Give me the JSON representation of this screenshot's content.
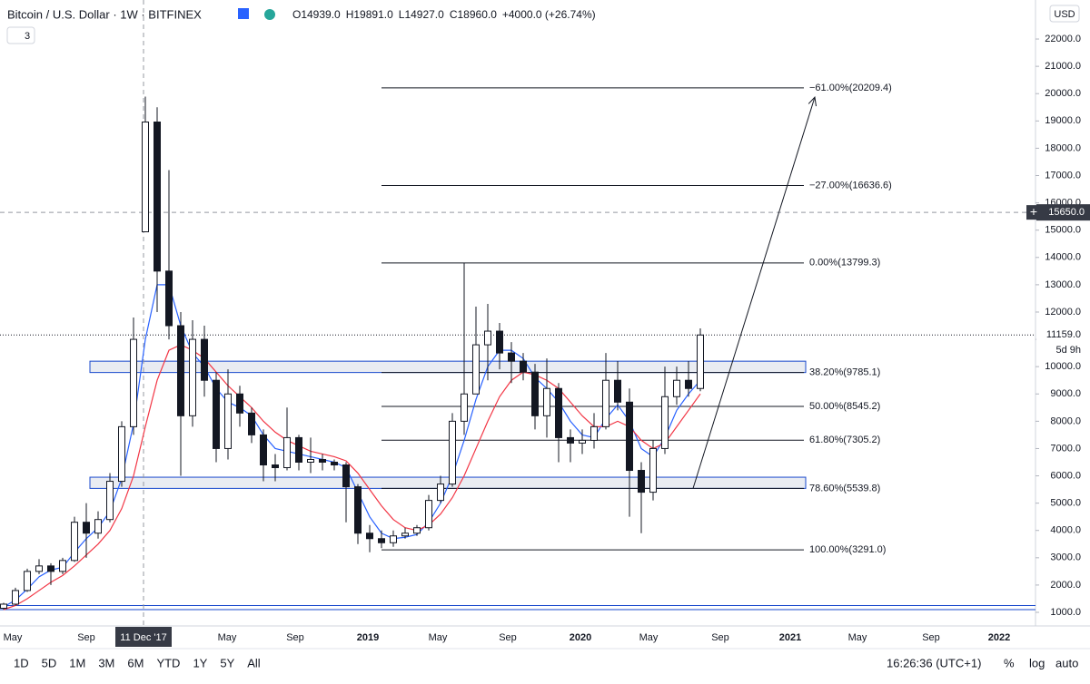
{
  "header": {
    "symbol": "Bitcoin / U.S. Dollar · 1W · BITFINEX",
    "indicators": "3",
    "ohlc": [
      "O14939.0",
      "H19891.0",
      "L14927.0",
      "C18960.0",
      "+4000.0 (+26.74%)"
    ]
  },
  "chart_data": {
    "type": "candlestick",
    "currency": "USD",
    "ylim": [
      502,
      23430
    ],
    "yticks": [
      {
        "value": 1000,
        "label": "1000.0"
      },
      {
        "value": 2000,
        "label": "2000.0"
      },
      {
        "value": 3000,
        "label": "3000.0"
      },
      {
        "value": 4000,
        "label": "4000.0"
      },
      {
        "value": 5000,
        "label": "5000.0"
      },
      {
        "value": 6000,
        "label": "6000.0"
      },
      {
        "value": 7000,
        "label": "7000.0"
      },
      {
        "value": 8000,
        "label": "8000.0"
      },
      {
        "value": 9000,
        "label": "9000.0"
      },
      {
        "value": 10000,
        "label": "10000.0"
      },
      {
        "value": 11000,
        "label": "11000.0"
      },
      {
        "value": 12000,
        "label": "12000.0"
      },
      {
        "value": 13000,
        "label": "13000.0"
      },
      {
        "value": 14000,
        "label": "14000.0"
      },
      {
        "value": 15000,
        "label": "15000.0"
      },
      {
        "value": 16000,
        "label": "16000.0"
      },
      {
        "value": 17000,
        "label": "17000.0"
      },
      {
        "value": 18000,
        "label": "18000.0"
      },
      {
        "value": 19000,
        "label": "19000.0"
      },
      {
        "value": 20000,
        "label": "20000.0"
      },
      {
        "value": 21000,
        "label": "21000.0"
      },
      {
        "value": 22000,
        "label": "22000.0"
      }
    ],
    "xlabels": [
      "May",
      "Sep",
      "May",
      "Sep",
      "2019",
      "May",
      "Sep",
      "2020",
      "May",
      "Sep",
      "2021",
      "May",
      "Sep",
      "2022"
    ],
    "candles": [
      [
        1150,
        1350,
        1100,
        1300
      ],
      [
        1300,
        1900,
        1250,
        1800
      ],
      [
        1800,
        2600,
        1750,
        2500
      ],
      [
        2500,
        2950,
        2400,
        2700
      ],
      [
        2700,
        2800,
        2000,
        2500
      ],
      [
        2500,
        3000,
        2400,
        2900
      ],
      [
        2900,
        4500,
        2850,
        4300
      ],
      [
        4300,
        5000,
        3000,
        3900
      ],
      [
        3900,
        4700,
        3700,
        4400
      ],
      [
        4400,
        6100,
        4300,
        5800
      ],
      [
        5800,
        8000,
        5600,
        7800
      ],
      [
        7800,
        11800,
        7500,
        11000
      ],
      [
        14939,
        19891,
        14927,
        18960
      ],
      [
        18960,
        19500,
        12000,
        13500
      ],
      [
        13500,
        17200,
        11000,
        11500
      ],
      [
        11500,
        12000,
        6000,
        8200
      ],
      [
        8200,
        11700,
        7800,
        11000
      ],
      [
        11000,
        11500,
        8900,
        9500
      ],
      [
        9500,
        9800,
        6500,
        7000
      ],
      [
        7000,
        9900,
        6600,
        9000
      ],
      [
        9000,
        9300,
        7800,
        8300
      ],
      [
        8300,
        8500,
        7200,
        7500
      ],
      [
        7500,
        7700,
        5800,
        6400
      ],
      [
        6400,
        6800,
        5800,
        6300
      ],
      [
        6300,
        8500,
        6200,
        7400
      ],
      [
        7400,
        7500,
        6200,
        6500
      ],
      [
        6500,
        7400,
        6100,
        6600
      ],
      [
        6600,
        6800,
        6200,
        6500
      ],
      [
        6500,
        6600,
        6200,
        6400
      ],
      [
        6400,
        6500,
        4300,
        5600
      ],
      [
        5600,
        5700,
        3500,
        3900
      ],
      [
        3900,
        4200,
        3200,
        3700
      ],
      [
        3700,
        4000,
        3350,
        3550
      ],
      [
        3550,
        4000,
        3400,
        3800
      ],
      [
        3800,
        4100,
        3700,
        3900
      ],
      [
        3900,
        4200,
        3800,
        4100
      ],
      [
        4100,
        5300,
        4000,
        5100
      ],
      [
        5100,
        6000,
        5000,
        5700
      ],
      [
        5700,
        8300,
        5600,
        8000
      ],
      [
        8000,
        13800,
        7500,
        9000
      ],
      [
        9000,
        12200,
        9000,
        10800
      ],
      [
        10800,
        12300,
        9500,
        11300
      ],
      [
        11300,
        11600,
        9900,
        10500
      ],
      [
        10500,
        10900,
        9400,
        10200
      ],
      [
        10200,
        10500,
        9500,
        9800
      ],
      [
        9800,
        10100,
        7700,
        8200
      ],
      [
        8200,
        10300,
        7400,
        9200
      ],
      [
        9200,
        9400,
        6500,
        7400
      ],
      [
        7400,
        7700,
        6500,
        7200
      ],
      [
        7200,
        7700,
        6800,
        7300
      ],
      [
        7300,
        8300,
        7000,
        7800
      ],
      [
        7800,
        10500,
        7700,
        9500
      ],
      [
        9500,
        10200,
        8400,
        8700
      ],
      [
        8700,
        9200,
        4500,
        6200
      ],
      [
        6200,
        6500,
        3900,
        5400
      ],
      [
        5400,
        7300,
        5100,
        7000
      ],
      [
        7000,
        10000,
        6800,
        8900
      ],
      [
        8900,
        10000,
        8600,
        9500
      ],
      [
        9500,
        10200,
        8900,
        9200
      ],
      [
        9200,
        11400,
        9100,
        11159
      ]
    ],
    "series": [
      {
        "color": "#2962ff",
        "values": [
          1200,
          1450,
          1850,
          2300,
          2550,
          2650,
          3200,
          3700,
          4100,
          4700,
          5900,
          7900,
          11000,
          13000,
          13000,
          11500,
          10500,
          10000,
          9200,
          8700,
          8500,
          8200,
          7500,
          7000,
          6900,
          6800,
          6700,
          6600,
          6500,
          6300,
          5400,
          4500,
          3900,
          3700,
          3750,
          3850,
          4300,
          5000,
          6000,
          7300,
          8800,
          10000,
          10600,
          10600,
          10300,
          9600,
          9200,
          8700,
          8000,
          7500,
          7400,
          8100,
          8600,
          8000,
          7000,
          6700,
          7400,
          8400,
          9000,
          9500
        ]
      },
      {
        "color": "#f23645",
        "values": [
          1100,
          1250,
          1500,
          1800,
          2100,
          2350,
          2700,
          3100,
          3500,
          4000,
          4800,
          6000,
          7800,
          9500,
          10600,
          10800,
          10600,
          10300,
          9800,
          9300,
          8900,
          8500,
          8000,
          7600,
          7300,
          7100,
          6900,
          6800,
          6700,
          6550,
          6100,
          5500,
          4900,
          4400,
          4100,
          4000,
          4200,
          4600,
          5200,
          6000,
          7000,
          8000,
          8900,
          9500,
          9800,
          9700,
          9500,
          9200,
          8700,
          8200,
          7800,
          7800,
          8000,
          7800,
          7300,
          7000,
          7200,
          7800,
          8400,
          9000
        ]
      }
    ],
    "fib_levels": [
      {
        "value": 20209.4,
        "label": "−61.00%(20209.4)"
      },
      {
        "value": 16636.6,
        "label": "−27.00%(16636.6)"
      },
      {
        "value": 13799.3,
        "label": "0.00%(13799.3)"
      },
      {
        "value": 9785.1,
        "label": "38.20%(9785.1)"
      },
      {
        "value": 8545.2,
        "label": "50.00%(8545.2)"
      },
      {
        "value": 7305.2,
        "label": "61.80%(7305.2)"
      },
      {
        "value": 5539.8,
        "label": "78.60%(5539.8)"
      },
      {
        "value": 3291.0,
        "label": "100.00%(3291.0)"
      }
    ],
    "zones": [
      {
        "low": 9785.1,
        "high": 10200
      },
      {
        "low": 5539.8,
        "high": 5950
      }
    ],
    "hlines": [
      1250,
      1100
    ],
    "arrow": {
      "from": 5539.8,
      "to": 19870
    },
    "last_price": {
      "value": 11159,
      "label": "11159.0"
    },
    "countdown": "5d 9h",
    "crosshair": {
      "date": "11 Dec '17",
      "price": {
        "value": 15650,
        "label": "15650.0"
      }
    }
  },
  "toolbar": {
    "ranges": [
      "1D",
      "5D",
      "1M",
      "3M",
      "6M",
      "YTD",
      "1Y",
      "5Y",
      "All"
    ],
    "time": "16:26:36 (UTC+1)",
    "options": [
      "%",
      "log",
      "auto"
    ]
  }
}
